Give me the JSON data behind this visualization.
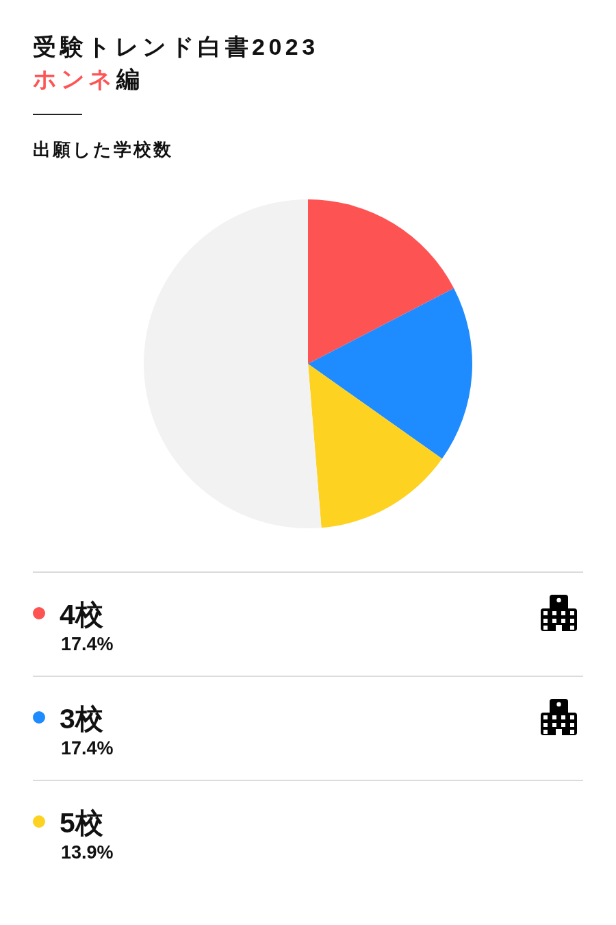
{
  "chart_data": {
    "type": "pie",
    "title": "受験トレンド白書2023",
    "subtitle": "ホンネ編",
    "annotations": [
      "出願した学校数"
    ],
    "categories": [
      "4校",
      "3校",
      "5校",
      null
    ],
    "values": [
      17.4,
      17.4,
      13.9,
      51.3
    ],
    "colors": [
      "#fe5353",
      "#1e8bff",
      "#fdd221",
      "#f2f2f2"
    ],
    "value_labels": [
      "17.4%",
      "17.4%",
      "13.9%",
      null
    ],
    "legend": "bottom"
  }
}
